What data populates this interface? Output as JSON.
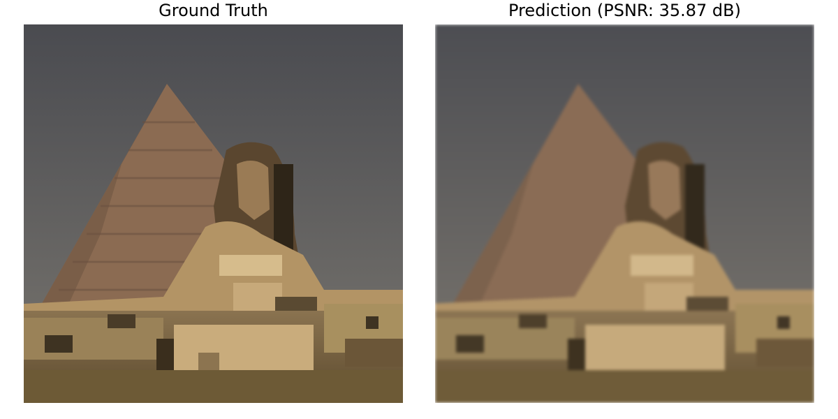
{
  "panels": [
    {
      "title": "Ground Truth"
    },
    {
      "title": "Prediction (PSNR: 35.87 dB)"
    }
  ],
  "colors": {
    "sky_top": "#4b4c51",
    "sky_bottom": "#75726b",
    "pyramid_lit": "#8b6b52",
    "pyramid_shade": "#6e5645",
    "sphinx_head": "#5e4a33",
    "sphinx_body": "#b59668",
    "ground": "#7a6440"
  }
}
